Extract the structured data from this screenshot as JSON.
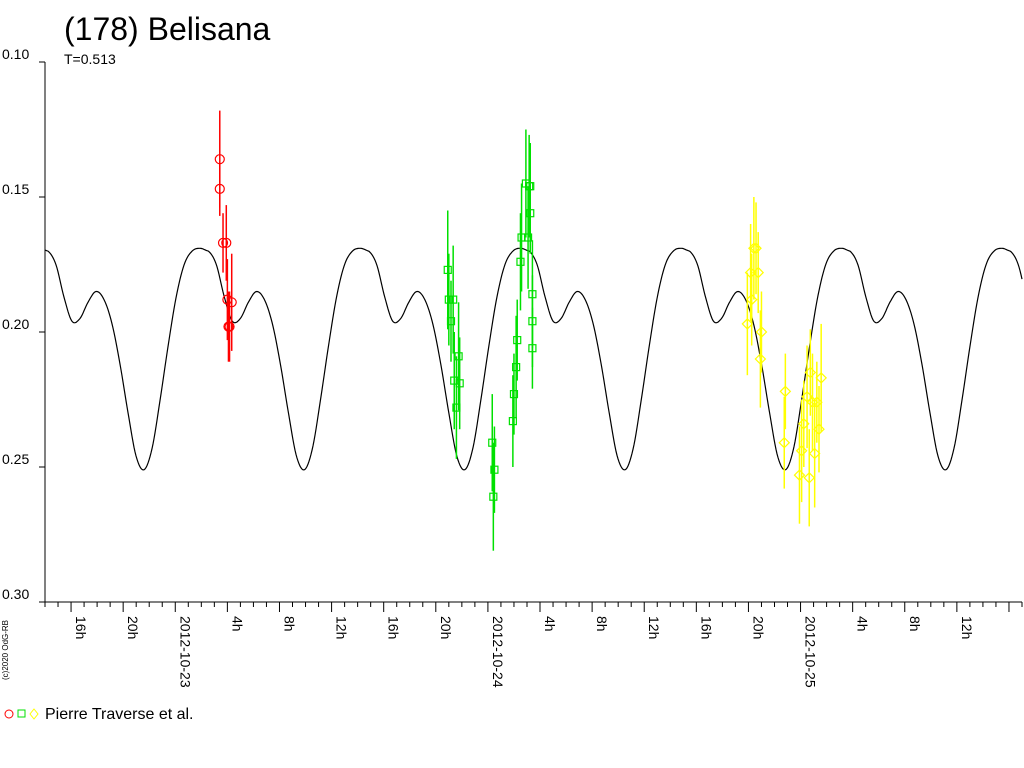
{
  "chart_data": {
    "type": "scatter",
    "title": "(178) Belisana",
    "subtitle": "T=0.513",
    "copyright": "(c)2020 OdG-RB",
    "legend_label": "Pierre Traverse et al.",
    "legend_placement": "bottom-left",
    "y_inverted": true,
    "ylim": [
      0.1,
      0.3
    ],
    "y_ticks": [
      "0.10",
      "0.15",
      "0.20",
      "0.25",
      "0.30"
    ],
    "x_axis": {
      "start": "2012-10-22 14:00",
      "end": "2012-10-25 17:00",
      "hour_labels": [
        {
          "t": "2012-10-22 16:00",
          "label": "16h"
        },
        {
          "t": "2012-10-22 20:00",
          "label": "20h"
        },
        {
          "t": "2012-10-23 04:00",
          "label": "4h"
        },
        {
          "t": "2012-10-23 08:00",
          "label": "8h"
        },
        {
          "t": "2012-10-23 12:00",
          "label": "12h"
        },
        {
          "t": "2012-10-23 16:00",
          "label": "16h"
        },
        {
          "t": "2012-10-23 20:00",
          "label": "20h"
        },
        {
          "t": "2012-10-24 04:00",
          "label": "4h"
        },
        {
          "t": "2012-10-24 08:00",
          "label": "8h"
        },
        {
          "t": "2012-10-24 12:00",
          "label": "12h"
        },
        {
          "t": "2012-10-24 16:00",
          "label": "16h"
        },
        {
          "t": "2012-10-24 20:00",
          "label": "20h"
        },
        {
          "t": "2012-10-25 04:00",
          "label": "4h"
        },
        {
          "t": "2012-10-25 08:00",
          "label": "8h"
        },
        {
          "t": "2012-10-25 12:00",
          "label": "12h"
        }
      ],
      "date_labels": [
        {
          "t": "2012-10-23 00:00",
          "label": "2012-10-23"
        },
        {
          "t": "2012-10-24 00:00",
          "label": "2012-10-24"
        },
        {
          "t": "2012-10-25 00:00",
          "label": "2012-10-25"
        }
      ]
    },
    "model_curve": {
      "color": "#000000",
      "period_hours": 12.312,
      "min_magnitude": 0.17,
      "max_magnitude": 0.251,
      "primary_minimum_at": "2012-10-23 02:32",
      "samples_one_cycle": [
        {
          "phase": 0.0,
          "y": 0.17
        },
        {
          "phase": 0.05,
          "y": 0.175
        },
        {
          "phase": 0.1,
          "y": 0.187
        },
        {
          "phase": 0.15,
          "y": 0.196
        },
        {
          "phase": 0.2,
          "y": 0.195
        },
        {
          "phase": 0.25,
          "y": 0.189
        },
        {
          "phase": 0.3,
          "y": 0.185
        },
        {
          "phase": 0.35,
          "y": 0.188
        },
        {
          "phase": 0.4,
          "y": 0.197
        },
        {
          "phase": 0.45,
          "y": 0.212
        },
        {
          "phase": 0.5,
          "y": 0.23
        },
        {
          "phase": 0.55,
          "y": 0.246
        },
        {
          "phase": 0.6,
          "y": 0.251
        },
        {
          "phase": 0.65,
          "y": 0.243
        },
        {
          "phase": 0.7,
          "y": 0.225
        },
        {
          "phase": 0.75,
          "y": 0.205
        },
        {
          "phase": 0.8,
          "y": 0.187
        },
        {
          "phase": 0.85,
          "y": 0.175
        },
        {
          "phase": 0.9,
          "y": 0.17
        },
        {
          "phase": 0.95,
          "y": 0.169
        },
        {
          "phase": 1.0,
          "y": 0.17
        }
      ]
    },
    "series": [
      {
        "name": "Pierre Traverse et al.",
        "session": "2012-10-23",
        "color": "#ff0000",
        "marker": "circle",
        "points": [
          {
            "t": "2012-10-23 03:25",
            "y": 0.136,
            "err": 0.018
          },
          {
            "t": "2012-10-23 03:25",
            "y": 0.147,
            "err": 0.01
          },
          {
            "t": "2012-10-23 03:40",
            "y": 0.167,
            "err": 0.011
          },
          {
            "t": "2012-10-23 03:55",
            "y": 0.167,
            "err": 0.014
          },
          {
            "t": "2012-10-23 04:00",
            "y": 0.188,
            "err": 0.015
          },
          {
            "t": "2012-10-23 04:05",
            "y": 0.198,
            "err": 0.013
          },
          {
            "t": "2012-10-23 04:10",
            "y": 0.198,
            "err": 0.013
          },
          {
            "t": "2012-10-23 04:20",
            "y": 0.189,
            "err": 0.018
          }
        ]
      },
      {
        "name": "Pierre Traverse et al.",
        "session": "2012-10-24",
        "color": "#00e000",
        "marker": "square",
        "points": [
          {
            "t": "2012-10-23 20:55",
            "y": 0.177,
            "err": 0.022
          },
          {
            "t": "2012-10-23 21:00",
            "y": 0.188,
            "err": 0.017
          },
          {
            "t": "2012-10-23 21:10",
            "y": 0.196,
            "err": 0.015
          },
          {
            "t": "2012-10-23 21:20",
            "y": 0.188,
            "err": 0.02
          },
          {
            "t": "2012-10-23 21:25",
            "y": 0.218,
            "err": 0.018
          },
          {
            "t": "2012-10-23 21:35",
            "y": 0.228,
            "err": 0.019
          },
          {
            "t": "2012-10-23 21:45",
            "y": 0.209,
            "err": 0.02
          },
          {
            "t": "2012-10-23 21:50",
            "y": 0.219,
            "err": 0.017
          },
          {
            "t": "2012-10-24 00:20",
            "y": 0.241,
            "err": 0.018
          },
          {
            "t": "2012-10-24 00:25",
            "y": 0.261,
            "err": 0.02
          },
          {
            "t": "2012-10-24 00:30",
            "y": 0.251,
            "err": 0.016
          },
          {
            "t": "2012-10-24 01:55",
            "y": 0.233,
            "err": 0.017
          },
          {
            "t": "2012-10-24 02:00",
            "y": 0.223,
            "err": 0.015
          },
          {
            "t": "2012-10-24 02:10",
            "y": 0.213,
            "err": 0.019
          },
          {
            "t": "2012-10-24 02:15",
            "y": 0.203,
            "err": 0.015
          },
          {
            "t": "2012-10-24 02:30",
            "y": 0.174,
            "err": 0.018
          },
          {
            "t": "2012-10-24 02:35",
            "y": 0.165,
            "err": 0.02
          },
          {
            "t": "2012-10-24 02:55",
            "y": 0.145,
            "err": 0.02
          },
          {
            "t": "2012-10-24 03:05",
            "y": 0.165,
            "err": 0.019
          },
          {
            "t": "2012-10-24 03:10",
            "y": 0.146,
            "err": 0.019
          },
          {
            "t": "2012-10-24 03:15",
            "y": 0.156,
            "err": 0.015
          },
          {
            "t": "2012-10-24 03:25",
            "y": 0.186,
            "err": 0.02
          },
          {
            "t": "2012-10-24 03:25",
            "y": 0.196,
            "err": 0.017
          },
          {
            "t": "2012-10-24 03:25",
            "y": 0.206,
            "err": 0.015
          },
          {
            "t": "2012-10-24 03:15",
            "y": 0.146,
            "err": 0.016
          }
        ]
      },
      {
        "name": "Pierre Traverse et al.",
        "session": "2012-10-25",
        "color": "#ffff00",
        "marker": "diamond",
        "points": [
          {
            "t": "2012-10-24 19:55",
            "y": 0.197,
            "err": 0.019
          },
          {
            "t": "2012-10-24 20:10",
            "y": 0.178,
            "err": 0.018
          },
          {
            "t": "2012-10-24 20:15",
            "y": 0.188,
            "err": 0.017
          },
          {
            "t": "2012-10-24 20:25",
            "y": 0.169,
            "err": 0.019
          },
          {
            "t": "2012-10-24 20:35",
            "y": 0.169,
            "err": 0.017
          },
          {
            "t": "2012-10-24 20:45",
            "y": 0.178,
            "err": 0.015
          },
          {
            "t": "2012-10-24 20:55",
            "y": 0.21,
            "err": 0.018
          },
          {
            "t": "2012-10-24 21:00",
            "y": 0.2,
            "err": 0.015
          },
          {
            "t": "2012-10-24 22:45",
            "y": 0.241,
            "err": 0.017
          },
          {
            "t": "2012-10-24 22:50",
            "y": 0.222,
            "err": 0.014
          },
          {
            "t": "2012-10-24 23:55",
            "y": 0.253,
            "err": 0.018
          },
          {
            "t": "2012-10-25 00:05",
            "y": 0.244,
            "err": 0.019
          },
          {
            "t": "2012-10-25 00:15",
            "y": 0.234,
            "err": 0.016
          },
          {
            "t": "2012-10-25 00:30",
            "y": 0.224,
            "err": 0.019
          },
          {
            "t": "2012-10-25 00:40",
            "y": 0.254,
            "err": 0.018
          },
          {
            "t": "2012-10-25 00:45",
            "y": 0.215,
            "err": 0.016
          },
          {
            "t": "2012-10-25 00:55",
            "y": 0.226,
            "err": 0.018
          },
          {
            "t": "2012-10-25 01:05",
            "y": 0.245,
            "err": 0.02
          },
          {
            "t": "2012-10-25 01:15",
            "y": 0.226,
            "err": 0.015
          },
          {
            "t": "2012-10-25 01:25",
            "y": 0.236,
            "err": 0.016
          },
          {
            "t": "2012-10-25 01:35",
            "y": 0.217,
            "err": 0.02
          }
        ]
      }
    ]
  }
}
